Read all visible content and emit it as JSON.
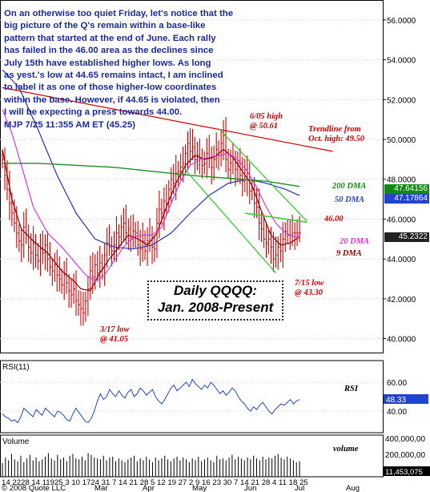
{
  "commentary": "On an otherwise too quiet Friday, let's notice that the\nbig picture of the Q's remain within a base-like\npattern that started at the end of June. Each rally\nhas failed in the 46.00 area as the declines since\nJuly 15th have established higher lows.  As long\nas yest.'s low at 44.65 remains intact, I am inclined\nto label it as one of those higher-low coordinates\nwithin the base. However, if 44.65 is violated, then\nI will be expecting a press towards 44.00.\nMJP  7/25 11:355 AM ET (45.25)",
  "annotations": {
    "high_605": "6/05 high\n@ 50.61",
    "trendline": "Trendline from\nOct. high: 49.50",
    "dma200": "200 DMA",
    "dma50": "50 DMA",
    "level46": "46.00",
    "dma20": "20 DMA",
    "dma9": "9 DMA",
    "low_715": "7/15 low\n@ 43.30",
    "low_317": "3/17 low\n@ 41.05",
    "rsi_label": "RSI",
    "volume_label": "volume"
  },
  "title_box": [
    "Daily QQQQ:",
    "Jan. 2008-Present"
  ],
  "price_tags": [
    {
      "text": "47.64156",
      "color": "#138a13"
    },
    {
      "text": "47.17864",
      "color": "#2244cc"
    },
    {
      "text": "45.2322",
      "color": "#222222"
    }
  ],
  "rsi_panel": {
    "title": "RSI(11)",
    "value": "48.33",
    "value_color": "#2244cc",
    "ticks": [
      "60.00",
      "40.00"
    ]
  },
  "volume_panel": {
    "title": "Volume",
    "value": "11,453,075",
    "ticks": [
      "400,000,00",
      "200,000,00"
    ]
  },
  "x_axis": {
    "dates": "14 2228 14 11925 3 10 1724 31 7 14 21 28 5 12 19 27 2 9 16 23 30 7 14 21 28 4 11 18 25",
    "months": [
      "Mar",
      "Apr",
      "May",
      "Jun",
      "Jul",
      "Aug"
    ],
    "copyright": "© 2008 Quote LLC"
  },
  "colors": {
    "price": "#cc0000",
    "ma9": "#8b0000",
    "ma20": "#dd33dd",
    "ma50": "#2233aa",
    "ma200": "#228b22",
    "trend": "#cc0000",
    "channel": "#33cc33",
    "rsi": "#2244cc"
  },
  "chart_data": {
    "type": "line",
    "title": "Daily QQQQ: Jan. 2008-Present",
    "ylim": [
      39.3,
      57.0
    ],
    "y_ticks": [
      40,
      42,
      44,
      46,
      48,
      50,
      52,
      54,
      56
    ],
    "y_tick_labels": [
      "40.0000",
      "42.0000",
      "44.0000",
      "46.0000",
      "48.0000",
      "50.0000",
      "52.0000",
      "54.0000",
      "56.0000"
    ],
    "x_range": [
      1,
      160
    ],
    "price_close": [
      49.0,
      48.2,
      47.5,
      46.8,
      46.3,
      45.8,
      45.3,
      44.9,
      44.7,
      45.6,
      45.2,
      44.6,
      44.3,
      44.8,
      44.2,
      43.9,
      44.5,
      44.3,
      44.7,
      44.0,
      43.6,
      43.4,
      43.7,
      43.2,
      43.0,
      42.7,
      43.2,
      42.8,
      42.4,
      42.2,
      42.5,
      41.9,
      41.7,
      41.5,
      41.3,
      41.9,
      42.5,
      43.4,
      43.1,
      43.7,
      43.3,
      43.8,
      43.5,
      44.2,
      44.8,
      44.6,
      44.4,
      44.7,
      45.3,
      45.1,
      45.6,
      45.8,
      45.3,
      45.5,
      45.0,
      45.4,
      45.3,
      44.7,
      44.5,
      44.9,
      44.4,
      44.9,
      45.2,
      44.6,
      44.5,
      45.8,
      46.5,
      46.3,
      46.9,
      46.8,
      47.5,
      48.0,
      47.8,
      48.3,
      48.4,
      48.6,
      48.8,
      49.3,
      49.8,
      49.4,
      49.6,
      49.0,
      49.2,
      49.1,
      48.7,
      48.8,
      49.3,
      49.1,
      48.6,
      49.0,
      49.5,
      49.2,
      49.8,
      50.2,
      49.0,
      48.5,
      48.8,
      49.0,
      48.5,
      48.8,
      48.2,
      47.9,
      48.5,
      48.0,
      47.4,
      47.5,
      46.8,
      46.6,
      45.8,
      45.5,
      45.0,
      44.8,
      45.0,
      44.6,
      44.0,
      44.2,
      44.6,
      44.4,
      45.0,
      45.4,
      45.2,
      45.2,
      45.3,
      45.3,
      45.3,
      45.3,
      45.3,
      45.3,
      45.3,
      45.3,
      45.3,
      45.3,
      45.3,
      45.3,
      45.3,
      45.3,
      45.3,
      45.3,
      45.3,
      45.3,
      45.3,
      45.3,
      45.3,
      45.3,
      45.3,
      45.3,
      45.3,
      45.3,
      45.3,
      45.3,
      45.3,
      45.3,
      45.3,
      45.3,
      45.3,
      45.3,
      45.3,
      45.3
    ],
    "series": [
      {
        "name": "9 DMA",
        "points": [
          [
            1,
            49.5
          ],
          [
            5,
            47.0
          ],
          [
            9,
            45.5
          ],
          [
            14,
            44.9
          ],
          [
            20,
            44.3
          ],
          [
            26,
            43.4
          ],
          [
            31,
            42.9
          ],
          [
            34,
            42.5
          ],
          [
            38,
            42.4
          ],
          [
            42,
            43.3
          ],
          [
            46,
            44.0
          ],
          [
            50,
            44.6
          ],
          [
            54,
            45.2
          ],
          [
            58,
            45.0
          ],
          [
            62,
            44.7
          ],
          [
            66,
            45.3
          ],
          [
            70,
            46.6
          ],
          [
            74,
            47.8
          ],
          [
            78,
            48.7
          ],
          [
            82,
            49.2
          ],
          [
            86,
            49.0
          ],
          [
            90,
            49.1
          ],
          [
            94,
            49.5
          ],
          [
            98,
            49.1
          ],
          [
            102,
            48.4
          ],
          [
            106,
            47.7
          ],
          [
            110,
            46.4
          ],
          [
            114,
            45.2
          ],
          [
            118,
            44.7
          ],
          [
            122,
            44.8
          ],
          [
            126,
            45.1
          ]
        ]
      },
      {
        "name": "20 DMA",
        "points": [
          [
            1,
            51.5
          ],
          [
            5,
            50.3
          ],
          [
            9,
            48.7
          ],
          [
            14,
            46.6
          ],
          [
            20,
            45.3
          ],
          [
            26,
            44.6
          ],
          [
            31,
            43.9
          ],
          [
            36,
            43.2
          ],
          [
            40,
            42.9
          ],
          [
            44,
            43.2
          ],
          [
            48,
            43.9
          ],
          [
            52,
            44.6
          ],
          [
            56,
            45.1
          ],
          [
            60,
            45.2
          ],
          [
            64,
            45.2
          ],
          [
            68,
            45.6
          ],
          [
            72,
            46.8
          ],
          [
            76,
            47.9
          ],
          [
            80,
            48.7
          ],
          [
            84,
            49.0
          ],
          [
            88,
            49.1
          ],
          [
            92,
            49.2
          ],
          [
            96,
            49.3
          ],
          [
            100,
            49.0
          ],
          [
            104,
            48.4
          ],
          [
            108,
            47.6
          ],
          [
            112,
            46.6
          ],
          [
            116,
            45.8
          ],
          [
            120,
            45.3
          ],
          [
            124,
            45.1
          ],
          [
            126,
            45.2
          ]
        ]
      },
      {
        "name": "50 DMA",
        "points": [
          [
            1,
            53.5
          ],
          [
            8,
            52.6
          ],
          [
            16,
            50.5
          ],
          [
            24,
            48.2
          ],
          [
            32,
            46.3
          ],
          [
            40,
            45.0
          ],
          [
            48,
            44.6
          ],
          [
            56,
            44.5
          ],
          [
            64,
            44.7
          ],
          [
            72,
            45.3
          ],
          [
            80,
            46.3
          ],
          [
            88,
            47.2
          ],
          [
            96,
            47.8
          ],
          [
            104,
            48.0
          ],
          [
            112,
            47.8
          ],
          [
            120,
            47.5
          ],
          [
            126,
            47.18
          ]
        ]
      },
      {
        "name": "200 DMA",
        "points": [
          [
            1,
            48.8
          ],
          [
            16,
            48.8
          ],
          [
            32,
            48.7
          ],
          [
            48,
            48.6
          ],
          [
            64,
            48.4
          ],
          [
            80,
            48.2
          ],
          [
            96,
            48.05
          ],
          [
            112,
            47.9
          ],
          [
            126,
            47.64
          ]
        ]
      },
      {
        "name": "Trendline from Oct. high",
        "points": [
          [
            1,
            52.6
          ],
          [
            140,
            49.4
          ]
        ]
      },
      {
        "name": "46.00 level",
        "points": [
          [
            103,
            46.3
          ],
          [
            129,
            45.85
          ]
        ]
      },
      {
        "name": "Channel upper",
        "points": [
          [
            92,
            50.55
          ],
          [
            129,
            45.9
          ]
        ]
      },
      {
        "name": "Channel lower",
        "points": [
          [
            77,
            48.6
          ],
          [
            116,
            43.3
          ]
        ]
      }
    ],
    "rsi": {
      "ylim": [
        25,
        75
      ],
      "values": [
        38,
        36,
        35,
        33,
        34,
        32,
        36,
        42,
        40,
        38,
        36,
        41,
        39,
        37,
        42,
        40,
        38,
        36,
        40,
        39,
        37,
        34,
        33,
        38,
        42,
        39,
        36,
        33,
        32,
        35,
        40,
        47,
        52,
        48,
        50,
        55,
        52,
        50,
        54,
        51,
        49,
        53,
        55,
        50,
        52,
        56,
        54,
        51,
        53,
        55,
        50,
        47,
        45,
        48,
        52,
        56,
        58,
        54,
        56,
        58,
        60,
        57,
        62,
        59,
        57,
        55,
        58,
        56,
        60,
        58,
        55,
        52,
        54,
        51,
        53,
        56,
        54,
        50,
        47,
        45,
        42,
        40,
        43,
        41,
        44,
        46,
        43,
        40,
        38,
        41,
        43,
        45,
        44,
        46,
        48,
        45,
        47,
        48
      ]
    },
    "volume": {
      "ylim": [
        0,
        420000000
      ],
      "values": [
        150,
        210,
        180,
        250,
        190,
        170,
        230,
        160,
        200,
        240,
        180,
        210,
        170,
        190,
        220,
        260,
        200,
        180,
        240,
        190,
        210,
        170,
        230,
        250,
        200,
        190,
        220,
        180,
        260,
        240,
        210,
        200,
        190,
        230,
        180,
        210,
        220,
        170,
        200,
        180,
        160,
        190,
        210,
        230,
        170,
        200,
        180,
        220,
        190,
        160,
        210,
        180,
        200,
        230,
        190,
        170,
        200,
        220,
        180,
        210,
        190,
        160,
        200,
        180,
        220,
        170,
        190,
        210,
        180,
        160,
        230,
        190,
        200,
        180,
        210,
        240,
        190,
        220,
        200,
        180,
        210,
        190,
        230,
        200,
        180,
        220,
        190,
        210,
        200,
        230,
        250,
        210,
        190,
        220,
        200,
        180,
        160,
        170
      ]
    }
  }
}
